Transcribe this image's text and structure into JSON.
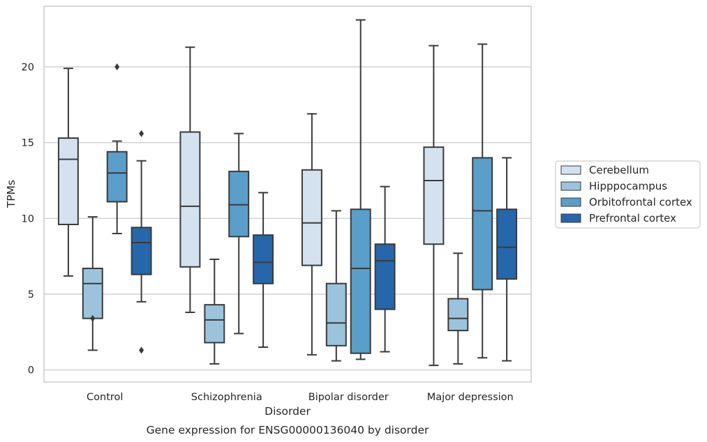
{
  "chart_data": {
    "type": "box",
    "caption": "Gene expression for ENSG00000136040 by disorder",
    "xlabel": "Disorder",
    "ylabel": "TPMs",
    "ylim": [
      -0.8,
      24.0
    ],
    "yticks": [
      0,
      5,
      10,
      15,
      20
    ],
    "grid": "horizontal",
    "legend_position": "right",
    "categories": [
      "Control",
      "Schizophrenia",
      "Bipolar disorder",
      "Major depression"
    ],
    "series": [
      {
        "name": "Cerebellum",
        "color": "#d4e2f0",
        "boxes": [
          {
            "whisker_low": 6.2,
            "q1": 9.6,
            "median": 13.9,
            "q3": 15.3,
            "whisker_high": 19.9,
            "outliers": []
          },
          {
            "whisker_low": 3.8,
            "q1": 6.8,
            "median": 10.8,
            "q3": 15.7,
            "whisker_high": 21.3,
            "outliers": []
          },
          {
            "whisker_low": 1.0,
            "q1": 6.9,
            "median": 9.7,
            "q3": 13.2,
            "whisker_high": 16.9,
            "outliers": []
          },
          {
            "whisker_low": 0.3,
            "q1": 8.3,
            "median": 12.5,
            "q3": 14.7,
            "whisker_high": 21.4,
            "outliers": []
          }
        ]
      },
      {
        "name": "Hipppocampus",
        "color": "#9cc3dc",
        "boxes": [
          {
            "whisker_low": 1.3,
            "q1": 3.4,
            "median": 5.7,
            "q3": 6.7,
            "whisker_high": 10.1,
            "outliers": [
              3.4
            ]
          },
          {
            "whisker_low": 0.4,
            "q1": 1.8,
            "median": 3.3,
            "q3": 4.3,
            "whisker_high": 7.3,
            "outliers": []
          },
          {
            "whisker_low": 0.6,
            "q1": 1.6,
            "median": 3.1,
            "q3": 5.7,
            "whisker_high": 10.5,
            "outliers": []
          },
          {
            "whisker_low": 0.4,
            "q1": 2.6,
            "median": 3.4,
            "q3": 4.7,
            "whisker_high": 7.7,
            "outliers": []
          }
        ]
      },
      {
        "name": "Orbitofrontal cortex",
        "color": "#5a9ec9",
        "boxes": [
          {
            "whisker_low": 9.0,
            "q1": 11.1,
            "median": 13.0,
            "q3": 14.4,
            "whisker_high": 15.1,
            "outliers": [
              20.0
            ]
          },
          {
            "whisker_low": 2.4,
            "q1": 8.8,
            "median": 10.9,
            "q3": 13.1,
            "whisker_high": 15.6,
            "outliers": []
          },
          {
            "whisker_low": 0.7,
            "q1": 1.1,
            "median": 6.7,
            "q3": 10.6,
            "whisker_high": 23.1,
            "outliers": []
          },
          {
            "whisker_low": 0.8,
            "q1": 5.3,
            "median": 10.5,
            "q3": 14.0,
            "whisker_high": 21.5,
            "outliers": []
          }
        ]
      },
      {
        "name": "Prefrontal cortex",
        "color": "#2666ab",
        "boxes": [
          {
            "whisker_low": 4.5,
            "q1": 6.3,
            "median": 8.4,
            "q3": 9.4,
            "whisker_high": 13.8,
            "outliers": [
              15.6,
              1.3
            ]
          },
          {
            "whisker_low": 1.5,
            "q1": 5.7,
            "median": 7.1,
            "q3": 8.9,
            "whisker_high": 11.7,
            "outliers": []
          },
          {
            "whisker_low": 1.2,
            "q1": 4.0,
            "median": 7.2,
            "q3": 8.3,
            "whisker_high": 12.1,
            "outliers": []
          },
          {
            "whisker_low": 0.6,
            "q1": 6.0,
            "median": 8.1,
            "q3": 10.6,
            "whisker_high": 14.0,
            "outliers": []
          }
        ]
      }
    ]
  }
}
